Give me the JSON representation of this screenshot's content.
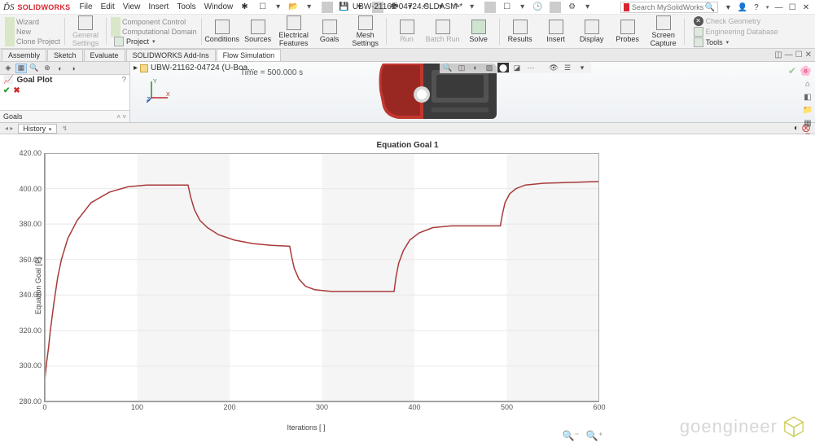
{
  "app": {
    "name": "SOLIDWORKS",
    "title": "UBW-21162-04724.SLDASM *",
    "search_placeholder": "Search MySolidWorks"
  },
  "menu": [
    "File",
    "Edit",
    "View",
    "Insert",
    "Tools",
    "Window"
  ],
  "ribbon": {
    "small_left": [
      "Wizard",
      "New",
      "Clone Project"
    ],
    "small_mid": [
      "Component Control",
      "Computational Domain"
    ],
    "general_settings": "General\nSettings",
    "big": [
      "Conditions",
      "Sources",
      "Electrical\nFeatures",
      "Goals",
      "Mesh\nSettings",
      "Run",
      "Batch\nRun",
      "Solve",
      "Results",
      "Insert",
      "Display",
      "Probes",
      "Screen\nCapture"
    ],
    "right_top": "Check Geometry",
    "right_bot": "Engineering Database",
    "project": "Project",
    "tools": "Tools"
  },
  "tabs": [
    "Assembly",
    "Sketch",
    "Evaluate",
    "SOLIDWORKS Add-Ins",
    "Flow Simulation"
  ],
  "active_tab": 4,
  "left_pane": {
    "goal_plot": "Goal Plot",
    "goals": "Goals"
  },
  "tree_root": "UBW-21162-04724 (U-Boa...",
  "time_info": "Time = 500.000 s",
  "history": "History",
  "chart": {
    "title": "Equation Goal 1",
    "xlabel": "Iterations [ ]",
    "ylabel": "Equation Goal [F]",
    "xlim": [
      0,
      600
    ],
    "xtick_step": 100,
    "ylim": [
      280,
      420
    ],
    "ytick_step": 20,
    "line_color": "#a83a3a",
    "band_color": "#f5f5f5",
    "grid_color": "#e8e8e8",
    "bands": [
      [
        100,
        200
      ],
      [
        300,
        400
      ],
      [
        500,
        600
      ]
    ],
    "data": [
      [
        0,
        292
      ],
      [
        2,
        302
      ],
      [
        4,
        310
      ],
      [
        6,
        320
      ],
      [
        10,
        336
      ],
      [
        14,
        350
      ],
      [
        18,
        360
      ],
      [
        25,
        372
      ],
      [
        35,
        382
      ],
      [
        50,
        392
      ],
      [
        70,
        398
      ],
      [
        90,
        401
      ],
      [
        110,
        402
      ],
      [
        155,
        402
      ],
      [
        158,
        395
      ],
      [
        162,
        388
      ],
      [
        168,
        382
      ],
      [
        176,
        378
      ],
      [
        188,
        374
      ],
      [
        205,
        371
      ],
      [
        225,
        369
      ],
      [
        245,
        368
      ],
      [
        265,
        367.5
      ],
      [
        267,
        362
      ],
      [
        270,
        355
      ],
      [
        275,
        349
      ],
      [
        282,
        345
      ],
      [
        292,
        343
      ],
      [
        310,
        342
      ],
      [
        340,
        342
      ],
      [
        378,
        342
      ],
      [
        380,
        350
      ],
      [
        383,
        358
      ],
      [
        388,
        365
      ],
      [
        395,
        371
      ],
      [
        405,
        375
      ],
      [
        420,
        378
      ],
      [
        440,
        379
      ],
      [
        470,
        379
      ],
      [
        493,
        379
      ],
      [
        495,
        385
      ],
      [
        498,
        392
      ],
      [
        503,
        397
      ],
      [
        510,
        400
      ],
      [
        520,
        402
      ],
      [
        540,
        403
      ],
      [
        570,
        403.5
      ],
      [
        600,
        404
      ]
    ]
  },
  "watermark": "goengineer"
}
